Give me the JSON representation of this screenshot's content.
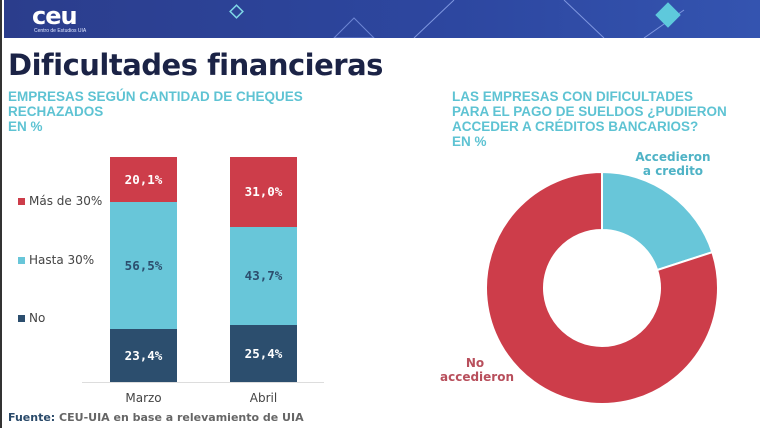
{
  "header": {
    "logo": "ceu",
    "logo_subtitle": "Centro de Estudios UIA"
  },
  "page_title": "Dificultades financieras",
  "left": {
    "subtitle": [
      "EMPRESAS SEGÚN CANTIDAD DE CHEQUES",
      "RECHAZADOS",
      "EN %"
    ]
  },
  "right": {
    "subtitle": [
      "LAS EMPRESAS CON DIFICULTADES",
      "PARA EL PAGO DE SUELDOS ¿PUDIERON",
      "ACCEDER A CRÉDITOS BANCARIOS?",
      "EN %"
    ]
  },
  "source": {
    "label": "Fuente:",
    "text": " CEU-UIA en base a relevamiento de UIA"
  },
  "chart_data": [
    {
      "type": "bar",
      "stacked": true,
      "categories": [
        "Marzo",
        "Abril"
      ],
      "series": [
        {
          "name": "No",
          "values": [
            23.4,
            25.4
          ],
          "labels": [
            "23,4%",
            "25,4%"
          ],
          "color": "#2c4e6e"
        },
        {
          "name": "Hasta 30%",
          "values": [
            56.5,
            43.7
          ],
          "labels": [
            "56,5%",
            "43,7%"
          ],
          "color": "#68c6d9"
        },
        {
          "name": "Más de 30%",
          "values": [
            20.1,
            31.0
          ],
          "labels": [
            "20,1%",
            "31,0%"
          ],
          "color": "#cd3d4a"
        }
      ],
      "legend": "left",
      "ylim": [
        0,
        100
      ]
    },
    {
      "type": "pie",
      "donut": true,
      "slices": [
        {
          "name": "Accedieron a credito",
          "value": 20,
          "color": "#68c6d9"
        },
        {
          "name": "No accedieron",
          "value": 80,
          "color": "#cd3d4a"
        }
      ]
    }
  ]
}
